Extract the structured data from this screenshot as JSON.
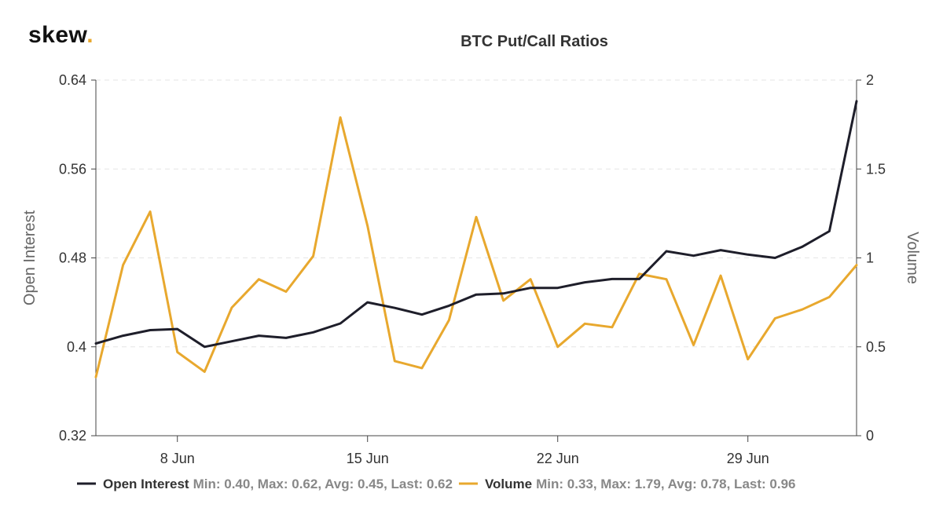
{
  "logo": {
    "text": "skew",
    "dot": "."
  },
  "chart_data": {
    "type": "line",
    "title": "BTC Put/Call Ratios",
    "x_tick_labels": [
      "8 Jun",
      "15 Jun",
      "22 Jun",
      "29 Jun"
    ],
    "x_tick_days": [
      8,
      15,
      22,
      29
    ],
    "xlim": [
      5,
      33
    ],
    "y_left": {
      "label": "Open Interest",
      "ylim": [
        0.32,
        0.64
      ],
      "ticks": [
        "0.32",
        "0.4",
        "0.48",
        "0.56",
        "0.64"
      ]
    },
    "y_right": {
      "label": "Volume",
      "ylim": [
        0,
        2
      ],
      "ticks": [
        "0",
        "0.5",
        "1",
        "1.5",
        "2"
      ]
    },
    "grid": true,
    "legend_position": "bottom",
    "series": [
      {
        "name": "Open Interest",
        "axis": "left",
        "color": "#1e1e2a",
        "stats": "Min: 0.40, Max: 0.62, Avg: 0.45, Last: 0.62",
        "x": [
          5,
          6,
          7,
          8,
          9,
          10,
          11,
          12,
          13,
          14,
          15,
          16,
          17,
          18,
          19,
          20,
          21,
          22,
          23,
          24,
          25,
          26,
          27,
          28,
          29,
          30,
          31,
          32,
          33
        ],
        "values": [
          0.403,
          0.41,
          0.415,
          0.416,
          0.4,
          0.405,
          0.41,
          0.408,
          0.413,
          0.421,
          0.44,
          0.435,
          0.429,
          0.437,
          0.447,
          0.448,
          0.453,
          0.453,
          0.458,
          0.461,
          0.461,
          0.486,
          0.482,
          0.487,
          0.483,
          0.48,
          0.49,
          0.504,
          0.621
        ]
      },
      {
        "name": "Volume",
        "axis": "right",
        "color": "#e8a82e",
        "stats": "Min: 0.33, Max: 1.79, Avg: 0.78, Last: 0.96",
        "x": [
          5,
          6,
          7,
          8,
          9,
          10,
          11,
          12,
          13,
          14,
          15,
          16,
          17,
          18,
          19,
          20,
          21,
          22,
          23,
          24,
          25,
          26,
          27,
          28,
          29,
          30,
          31,
          32,
          33
        ],
        "values": [
          0.33,
          0.96,
          1.26,
          0.47,
          0.36,
          0.72,
          0.88,
          0.81,
          1.01,
          1.79,
          1.18,
          0.42,
          0.38,
          0.65,
          1.23,
          0.76,
          0.88,
          0.5,
          0.63,
          0.61,
          0.91,
          0.88,
          0.51,
          0.9,
          0.43,
          0.66,
          0.71,
          0.78,
          0.96
        ]
      }
    ]
  }
}
